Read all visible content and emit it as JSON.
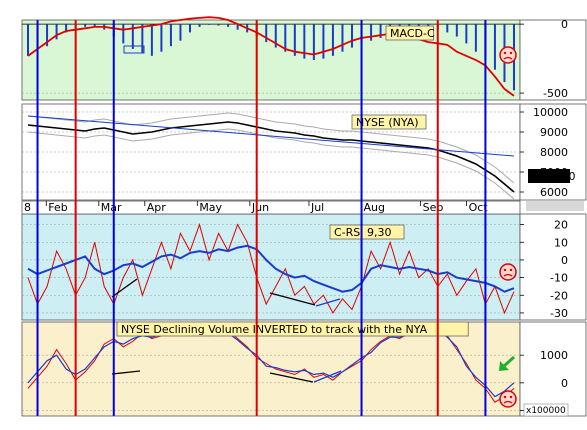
{
  "chart_data": [
    {
      "type": "line",
      "panel": "macd",
      "title": "MACD-C",
      "background": "#d9f7d4",
      "y_ticks": [
        "0",
        "-500"
      ],
      "ylim": [
        -550,
        30
      ],
      "histogram_values": [
        -230,
        -200,
        -160,
        -110,
        -60,
        -30,
        -20,
        -15,
        -40,
        -90,
        -140,
        -180,
        -210,
        -230,
        -200,
        -160,
        -120,
        -60,
        -20,
        -5,
        -10,
        -20,
        -40,
        -60,
        -90,
        -130,
        -170,
        -200,
        -230,
        -250,
        -260,
        -250,
        -230,
        -200,
        -170,
        -140,
        -120,
        -100,
        -80,
        -60,
        -50,
        -40,
        -30,
        -40,
        -60,
        -90,
        -140,
        -200,
        -260,
        -330,
        -420,
        -480
      ],
      "macd_line": [
        -230,
        -180,
        -130,
        -80,
        -50,
        -40,
        -30,
        -20,
        -20,
        -30,
        -40,
        -30,
        -20,
        -10,
        0,
        20,
        30,
        40,
        45,
        50,
        45,
        30,
        0,
        -30,
        -60,
        -100,
        -140,
        -180,
        -200,
        -210,
        -220,
        -200,
        -180,
        -150,
        -120,
        -100,
        -90,
        -80,
        -70,
        -75,
        -90,
        -110,
        -130,
        -140,
        -150,
        -200,
        -230,
        -260,
        -300,
        -380,
        -470,
        -520
      ],
      "colors": {
        "histogram": "#1a3ccc",
        "line": "#e00000"
      },
      "status_icon": "sad-face-icon"
    },
    {
      "type": "line",
      "panel": "nya",
      "title": "NYSE (NYA)",
      "background": "#ffffff",
      "y_ticks": [
        "10000",
        "9000",
        "8000",
        "7000",
        "6000"
      ],
      "ylim": [
        5600,
        10400
      ],
      "last_value_label": "5970.90",
      "price": [
        9350,
        9300,
        9250,
        9200,
        9150,
        9100,
        9050,
        9150,
        9200,
        9100,
        9000,
        8900,
        8950,
        9000,
        9100,
        9200,
        9250,
        9300,
        9350,
        9400,
        9450,
        9500,
        9450,
        9350,
        9250,
        9150,
        9050,
        9000,
        8950,
        8850,
        8800,
        8700,
        8650,
        8600,
        8600,
        8550,
        8500,
        8450,
        8400,
        8350,
        8300,
        8250,
        8200,
        8100,
        7950,
        7800,
        7600,
        7400,
        7100,
        6800,
        6400,
        6000
      ],
      "trendline": [
        [
          0,
          9800
        ],
        [
          51,
          7800
        ]
      ],
      "colors": {
        "price": "#000000",
        "trendline": "#1a3ccc",
        "envelope": "#aaaaaa"
      }
    },
    {
      "type": "line",
      "panel": "crsi",
      "title": "C-RSI 9,30",
      "background": "#cdeef2",
      "y_ticks": [
        "20",
        "10",
        "0",
        "-10",
        "-20",
        "-30"
      ],
      "ylim": [
        -34,
        26
      ],
      "rsi_fast": [
        -10,
        -25,
        -15,
        5,
        -5,
        -20,
        -10,
        10,
        -15,
        -25,
        -10,
        0,
        -20,
        -5,
        10,
        -5,
        15,
        5,
        20,
        0,
        15,
        5,
        20,
        10,
        -10,
        -25,
        -15,
        -5,
        -20,
        -15,
        -25,
        -20,
        -30,
        -22,
        -28,
        -15,
        5,
        -5,
        10,
        -8,
        5,
        -10,
        -5,
        -15,
        -8,
        -20,
        -12,
        -5,
        -25,
        -15,
        -30,
        -18
      ],
      "rsi_slow": [
        -5,
        -8,
        -6,
        -4,
        -2,
        0,
        2,
        -5,
        -8,
        -6,
        -3,
        -2,
        -4,
        -1,
        2,
        3,
        1,
        4,
        5,
        4,
        6,
        5,
        7,
        8,
        6,
        0,
        -5,
        -8,
        -10,
        -9,
        -12,
        -14,
        -16,
        -18,
        -17,
        -13,
        -5,
        -3,
        -4,
        -5,
        -4,
        -5,
        -6,
        -8,
        -7,
        -10,
        -11,
        -12,
        -13,
        -15,
        -18,
        -16
      ],
      "colors": {
        "fast": "#e00000",
        "slow": "#1a3ccc"
      },
      "status_icon": "sad-face-icon"
    },
    {
      "type": "line",
      "panel": "volume",
      "title": "NYSE Declining Volume INVERTED to track with the NYA",
      "background": "#fbf0cc",
      "y_ticks": [
        "-1000",
        "0",
        "1000"
      ],
      "y_multiplier_label": "x100000",
      "ylim": [
        -1200,
        2200
      ],
      "series_a": [
        1200,
        800,
        400,
        -200,
        300,
        900,
        600,
        200,
        -400,
        -600,
        -300,
        -500,
        -800,
        -600,
        -700,
        -900,
        -800,
        -1000,
        -900,
        -700,
        -800,
        -900,
        -600,
        -300,
        100,
        300,
        500,
        600,
        700,
        500,
        800,
        700,
        900,
        600,
        400,
        200,
        -200,
        -500,
        -700,
        -600,
        -800,
        -900,
        -800,
        -1000,
        -700,
        -200,
        300,
        900,
        1200,
        1700,
        1500,
        1200
      ],
      "series_b": [
        1000,
        600,
        200,
        0,
        500,
        700,
        500,
        100,
        -300,
        -500,
        -400,
        -600,
        -700,
        -650,
        -750,
        -850,
        -850,
        -900,
        -850,
        -750,
        -750,
        -800,
        -550,
        -250,
        0,
        400,
        450,
        550,
        600,
        550,
        700,
        650,
        800,
        600,
        350,
        100,
        -100,
        -450,
        -650,
        -650,
        -750,
        -850,
        -850,
        -900,
        -650,
        -300,
        400,
        800,
        1100,
        1500,
        1300,
        1000
      ],
      "colors": {
        "series_a": "#e00000",
        "series_b": "#1a3ccc"
      },
      "status_icon": "sad-face-icon",
      "annotation_icon": "arrow-down-left-icon"
    }
  ],
  "x_axis": {
    "start_label": "8",
    "months": [
      "Feb",
      "Mar",
      "Apr",
      "May",
      "Jun",
      "Jul",
      "Aug",
      "Sep",
      "Oct"
    ]
  },
  "markers": {
    "blue_lines": [
      1,
      9,
      35,
      48
    ],
    "red_lines": [
      5,
      24,
      43
    ],
    "colors": {
      "blue": "#0000e0",
      "red": "#e00000"
    }
  }
}
